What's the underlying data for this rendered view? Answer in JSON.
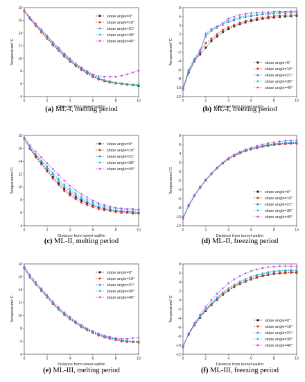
{
  "figure": {
    "series_colors": [
      "#2b2b2b",
      "#e0301e",
      "#2a6ee8",
      "#17c4b4",
      "#c23ee0"
    ],
    "series_markers": [
      "square",
      "circle",
      "triangle",
      "diamond",
      "star"
    ]
  },
  "chart_data": [
    {
      "type": "line",
      "caption_letter": "(a)",
      "caption_text": " ML-I, melting period",
      "xlabel": "Distance from tunnel wall/m",
      "ylabel": "Temperature/°C",
      "xlim": [
        0,
        10
      ],
      "ylim": [
        4,
        18
      ],
      "xticks": [
        0,
        2,
        4,
        6,
        8,
        10
      ],
      "yticks": [
        4,
        6,
        8,
        10,
        12,
        14,
        16,
        18
      ],
      "legend_position": "top-right",
      "x": [
        0,
        0.5,
        1,
        1.5,
        2,
        2.5,
        3,
        3.5,
        4,
        4.5,
        5,
        5.5,
        6,
        6.5,
        7,
        7.5,
        8,
        8.5,
        9,
        9.5,
        10
      ],
      "series": [
        {
          "name": "slope angle=0°",
          "values": [
            17.5,
            16.3,
            15.2,
            14.2,
            13.2,
            12.2,
            11.3,
            10.4,
            9.6,
            8.9,
            8.3,
            7.7,
            7.2,
            6.8,
            6.5,
            6.3,
            6.1,
            6.0,
            5.9,
            5.8,
            5.7
          ]
        },
        {
          "name": "slope angle=10°",
          "values": [
            17.4,
            16.2,
            15.1,
            14.1,
            13.1,
            12.1,
            11.2,
            10.3,
            9.5,
            8.8,
            8.2,
            7.6,
            7.1,
            6.7,
            6.4,
            6.2,
            6.1,
            6.0,
            5.9,
            5.8,
            5.8
          ]
        },
        {
          "name": "slope angle=21°",
          "values": [
            17.5,
            16.4,
            15.4,
            14.5,
            13.5,
            12.5,
            11.6,
            10.7,
            9.9,
            9.1,
            8.5,
            7.9,
            7.4,
            6.9,
            6.6,
            6.4,
            6.2,
            6.1,
            6.0,
            5.9,
            5.8
          ]
        },
        {
          "name": "slope angle=30°",
          "values": [
            17.5,
            16.3,
            15.3,
            14.3,
            13.3,
            12.3,
            11.4,
            10.5,
            9.7,
            9.0,
            8.4,
            7.8,
            7.3,
            6.9,
            6.6,
            6.4,
            6.2,
            6.1,
            6.0,
            5.9,
            5.9
          ]
        },
        {
          "name": "slope angle=40°",
          "values": [
            17.6,
            16.5,
            15.5,
            14.6,
            13.6,
            12.6,
            11.7,
            10.8,
            10.0,
            9.2,
            8.6,
            8.0,
            7.5,
            7.2,
            7.1,
            7.1,
            7.1,
            7.3,
            7.5,
            7.8,
            8.1
          ]
        }
      ]
    },
    {
      "type": "line",
      "caption_letter": "(b)",
      "caption_text": " ML-I, freezing period",
      "xlabel": "Distance from tunnel wall/m",
      "ylabel": "Temperature/°C",
      "xlim": [
        0,
        10
      ],
      "ylim": [
        -12,
        8
      ],
      "xticks": [
        0,
        2,
        4,
        6,
        8,
        10
      ],
      "yticks": [
        -12,
        -10,
        -8,
        -6,
        -4,
        -2,
        0,
        2,
        4,
        6,
        8
      ],
      "legend_position": "bottom-right",
      "x": [
        0,
        0.5,
        1,
        1.5,
        2,
        2.5,
        3,
        3.5,
        4,
        4.5,
        5,
        5.5,
        6,
        6.5,
        7,
        7.5,
        8,
        8.5,
        9,
        9.5,
        10
      ],
      "series": [
        {
          "name": "slope angle=0°",
          "values": [
            -10.2,
            -6.5,
            -4.0,
            -2.5,
            -1.0,
            0.5,
            1.5,
            2.5,
            3.2,
            3.8,
            4.3,
            4.7,
            5.0,
            5.3,
            5.5,
            5.7,
            5.8,
            5.9,
            6.0,
            6.1,
            6.2
          ]
        },
        {
          "name": "slope angle=10°",
          "values": [
            -10.0,
            -6.2,
            -3.8,
            -2.0,
            0.0,
            1.0,
            2.0,
            3.0,
            3.6,
            4.1,
            4.6,
            5.0,
            5.3,
            5.6,
            5.8,
            6.0,
            6.1,
            6.2,
            6.3,
            6.3,
            6.4
          ]
        },
        {
          "name": "slope angle=21°",
          "values": [
            -10.3,
            -6.0,
            -3.5,
            -1.5,
            1.5,
            2.8,
            3.5,
            4.2,
            4.8,
            5.2,
            5.6,
            5.9,
            6.1,
            6.3,
            6.5,
            6.6,
            6.7,
            6.8,
            6.8,
            6.9,
            6.9
          ]
        },
        {
          "name": "slope angle=30°",
          "values": [
            -10.1,
            -6.3,
            -3.8,
            -1.8,
            1.8,
            3.0,
            3.8,
            4.5,
            5.0,
            5.5,
            5.9,
            6.1,
            6.3,
            6.5,
            6.6,
            6.7,
            6.8,
            6.9,
            7.0,
            7.0,
            7.1
          ]
        },
        {
          "name": "slope angle=40°",
          "values": [
            -10.4,
            -6.8,
            -4.2,
            -2.2,
            2.2,
            3.2,
            3.8,
            4.5,
            5.5,
            6.0,
            6.4,
            6.6,
            6.8,
            6.9,
            7.0,
            7.0,
            7.1,
            7.1,
            7.1,
            7.2,
            7.2
          ]
        }
      ]
    },
    {
      "type": "line",
      "caption_letter": "(c)",
      "caption_text": " ML-II, melting period",
      "xlabel": "Distance from tunnel wall/m",
      "ylabel": "Temperature/°C",
      "xlim": [
        0,
        10
      ],
      "ylim": [
        4,
        18
      ],
      "xticks": [
        0,
        2,
        4,
        6,
        8,
        10
      ],
      "yticks": [
        4,
        6,
        8,
        10,
        12,
        14,
        16,
        18
      ],
      "legend_position": "top-right",
      "x": [
        0,
        0.5,
        1,
        1.5,
        2,
        2.5,
        3,
        3.5,
        4,
        4.5,
        5,
        5.5,
        6,
        6.5,
        7,
        7.5,
        8,
        8.5,
        9,
        9.5,
        10
      ],
      "series": [
        {
          "name": "slope angle=0°",
          "values": [
            17.5,
            16.0,
            14.8,
            13.7,
            12.6,
            11.6,
            10.6,
            9.7,
            9.0,
            8.4,
            7.9,
            7.5,
            7.1,
            6.8,
            6.6,
            6.4,
            6.3,
            6.2,
            6.1,
            6.0,
            6.0
          ]
        },
        {
          "name": "slope angle=10°",
          "values": [
            17.5,
            15.9,
            14.6,
            13.5,
            12.4,
            11.3,
            10.3,
            9.4,
            8.7,
            8.1,
            7.6,
            7.2,
            6.9,
            6.6,
            6.4,
            6.3,
            6.1,
            6.0,
            6.0,
            5.9,
            5.9
          ]
        },
        {
          "name": "slope angle=21°",
          "values": [
            17.6,
            16.1,
            15.0,
            14.0,
            13.0,
            12.0,
            11.0,
            10.1,
            9.4,
            8.7,
            8.2,
            7.7,
            7.3,
            7.0,
            6.8,
            6.6,
            6.4,
            6.3,
            6.2,
            6.2,
            6.1
          ]
        },
        {
          "name": "slope angle=30°",
          "values": [
            17.5,
            16.2,
            15.1,
            14.1,
            13.2,
            12.2,
            11.3,
            10.4,
            9.7,
            9.0,
            8.5,
            8.0,
            7.6,
            7.3,
            7.0,
            6.8,
            6.7,
            6.6,
            6.5,
            6.4,
            6.4
          ]
        },
        {
          "name": "slope angle=40°",
          "values": [
            17.7,
            16.5,
            15.5,
            14.6,
            13.7,
            12.8,
            11.9,
            11.0,
            10.2,
            9.5,
            8.9,
            8.4,
            7.9,
            7.5,
            7.2,
            7.0,
            6.8,
            6.7,
            6.6,
            6.6,
            6.5
          ]
        }
      ]
    },
    {
      "type": "line",
      "caption_letter": "(d)",
      "caption_text": " ML-II, freezing period",
      "xlabel": "Distance from tunnel wall/m",
      "ylabel": "Temperature/°C",
      "xlim": [
        0,
        10
      ],
      "ylim": [
        -12,
        8
      ],
      "xticks": [
        0,
        2,
        4,
        6,
        8,
        10
      ],
      "yticks": [
        -12,
        -10,
        -8,
        -6,
        -4,
        -2,
        0,
        2,
        4,
        6,
        8
      ],
      "legend_position": "bottom-right",
      "x": [
        0,
        0.5,
        1,
        1.5,
        2,
        2.5,
        3,
        3.5,
        4,
        4.5,
        5,
        5.5,
        6,
        6.5,
        7,
        7.5,
        8,
        8.5,
        9,
        9.5,
        10
      ],
      "series": [
        {
          "name": "slope angle=0°",
          "values": [
            -10.2,
            -7.5,
            -5.3,
            -3.5,
            -1.9,
            -0.5,
            0.8,
            1.9,
            2.8,
            3.5,
            4.1,
            4.6,
            5.0,
            5.3,
            5.6,
            5.8,
            6.0,
            6.1,
            6.2,
            6.3,
            6.3
          ]
        },
        {
          "name": "slope angle=10°",
          "values": [
            -10.3,
            -7.6,
            -5.4,
            -3.6,
            -2.0,
            -0.6,
            0.7,
            1.8,
            2.7,
            3.4,
            4.0,
            4.5,
            4.9,
            5.2,
            5.5,
            5.7,
            5.9,
            6.0,
            6.1,
            6.2,
            6.2
          ]
        },
        {
          "name": "slope angle=21°",
          "values": [
            -10.1,
            -7.4,
            -5.2,
            -3.4,
            -1.8,
            -0.4,
            0.9,
            2.0,
            2.9,
            3.6,
            4.2,
            4.7,
            5.1,
            5.4,
            5.7,
            5.9,
            6.1,
            6.2,
            6.3,
            6.4,
            6.4
          ]
        },
        {
          "name": "slope angle=30°",
          "values": [
            -10.2,
            -7.5,
            -5.3,
            -3.5,
            -1.9,
            -0.5,
            0.8,
            1.9,
            2.8,
            3.6,
            4.2,
            4.7,
            5.1,
            5.5,
            5.8,
            6.0,
            6.2,
            6.3,
            6.4,
            6.5,
            6.5
          ]
        },
        {
          "name": "slope angle=40°",
          "values": [
            -10.4,
            -7.7,
            -5.5,
            -3.6,
            -1.9,
            -0.4,
            0.9,
            2.0,
            3.0,
            3.8,
            4.4,
            4.9,
            5.3,
            5.7,
            6.0,
            6.3,
            6.5,
            6.7,
            6.8,
            6.9,
            6.9
          ]
        }
      ]
    },
    {
      "type": "line",
      "caption_letter": "(e)",
      "caption_text": " ML-III, melting period",
      "xlabel": "Distance from tunnel wall/m",
      "ylabel": "Temperature/°C",
      "xlim": [
        0,
        10
      ],
      "ylim": [
        4,
        18
      ],
      "xticks": [
        0,
        2,
        4,
        6,
        8,
        10
      ],
      "yticks": [
        4,
        6,
        8,
        10,
        12,
        14,
        16,
        18
      ],
      "legend_position": "top-right",
      "x": [
        0,
        0.5,
        1,
        1.5,
        2,
        2.5,
        3,
        3.5,
        4,
        4.5,
        5,
        5.5,
        6,
        6.5,
        7,
        7.5,
        8,
        8.5,
        9,
        9.5,
        10
      ],
      "series": [
        {
          "name": "slope angle=0°",
          "values": [
            17.4,
            16.0,
            14.9,
            13.9,
            12.9,
            11.9,
            11.0,
            10.2,
            9.5,
            8.9,
            8.3,
            7.8,
            7.4,
            7.0,
            6.7,
            6.5,
            6.3,
            6.1,
            6.0,
            5.9,
            5.9
          ]
        },
        {
          "name": "slope angle=10°",
          "values": [
            17.3,
            15.9,
            14.8,
            13.8,
            12.8,
            11.8,
            10.9,
            10.1,
            9.4,
            8.8,
            8.2,
            7.7,
            7.3,
            6.9,
            6.6,
            6.4,
            6.2,
            6.0,
            5.9,
            5.9,
            5.8
          ]
        },
        {
          "name": "slope angle=21°",
          "values": [
            17.5,
            16.1,
            15.0,
            14.0,
            13.0,
            12.0,
            11.1,
            10.3,
            9.6,
            9.0,
            8.4,
            7.9,
            7.5,
            7.1,
            6.8,
            6.6,
            6.4,
            6.2,
            6.1,
            6.0,
            6.0
          ]
        },
        {
          "name": "slope angle=30°",
          "values": [
            17.4,
            16.0,
            14.9,
            13.9,
            12.9,
            11.9,
            11.0,
            10.2,
            9.5,
            8.9,
            8.3,
            7.8,
            7.4,
            7.0,
            6.7,
            6.5,
            6.3,
            6.2,
            6.1,
            6.0,
            6.0
          ]
        },
        {
          "name": "slope angle=40°",
          "values": [
            17.6,
            16.3,
            15.2,
            14.2,
            13.2,
            12.2,
            11.3,
            10.5,
            9.8,
            9.1,
            8.5,
            8.0,
            7.6,
            7.2,
            6.9,
            6.7,
            6.5,
            6.4,
            6.4,
            6.5,
            6.6
          ]
        }
      ]
    },
    {
      "type": "line",
      "caption_letter": "(f)",
      "caption_text": " ML-III, freezing period",
      "xlabel": "Distance from tunnel wall/m",
      "ylabel": "Temperature/°C",
      "xlim": [
        0,
        10
      ],
      "ylim": [
        -12,
        8
      ],
      "xticks": [
        0,
        2,
        4,
        6,
        8,
        10
      ],
      "yticks": [
        -12,
        -10,
        -8,
        -6,
        -4,
        -2,
        0,
        2,
        4,
        6,
        8
      ],
      "legend_position": "bottom-right",
      "x": [
        0,
        0.5,
        1,
        1.5,
        2,
        2.5,
        3,
        3.5,
        4,
        4.5,
        5,
        5.5,
        6,
        6.5,
        7,
        7.5,
        8,
        8.5,
        9,
        9.5,
        10
      ],
      "series": [
        {
          "name": "slope angle=0°",
          "values": [
            -10.2,
            -7.6,
            -5.6,
            -3.9,
            -2.4,
            -1.1,
            0.1,
            1.2,
            2.1,
            2.9,
            3.6,
            4.1,
            4.6,
            5.0,
            5.3,
            5.6,
            5.8,
            5.9,
            6.0,
            6.1,
            6.1
          ]
        },
        {
          "name": "slope angle=10°",
          "values": [
            -10.1,
            -7.5,
            -5.5,
            -3.8,
            -2.3,
            -1.0,
            0.2,
            1.3,
            2.2,
            3.0,
            3.7,
            4.2,
            4.7,
            5.1,
            5.4,
            5.7,
            5.9,
            6.0,
            6.1,
            6.2,
            6.2
          ]
        },
        {
          "name": "slope angle=21°",
          "values": [
            -10.3,
            -7.5,
            -5.4,
            -3.7,
            -2.1,
            -0.8,
            0.5,
            1.6,
            2.5,
            3.3,
            4.0,
            4.6,
            5.1,
            5.5,
            5.8,
            6.1,
            6.3,
            6.4,
            6.5,
            6.6,
            6.6
          ]
        },
        {
          "name": "slope angle=30°",
          "values": [
            -10.2,
            -7.4,
            -5.3,
            -3.6,
            -2.0,
            -0.7,
            0.6,
            1.7,
            2.6,
            3.4,
            4.1,
            4.7,
            5.2,
            5.6,
            5.9,
            6.2,
            6.4,
            6.5,
            6.6,
            6.7,
            6.7
          ]
        },
        {
          "name": "slope angle=40°",
          "values": [
            -10.5,
            -7.4,
            -5.1,
            -3.2,
            -1.5,
            0.0,
            1.4,
            2.6,
            3.7,
            4.6,
            5.3,
            5.9,
            6.4,
            6.8,
            7.1,
            7.3,
            7.4,
            7.5,
            7.5,
            7.5,
            7.4
          ]
        }
      ]
    }
  ]
}
